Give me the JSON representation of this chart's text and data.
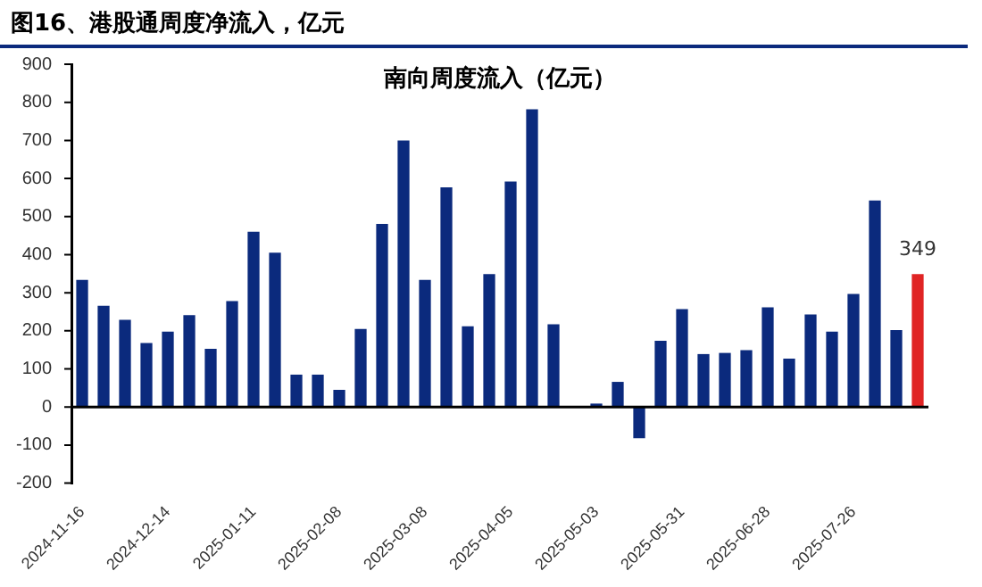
{
  "chart_data": {
    "type": "bar",
    "title": "图16、港股通周度净流入，亿元",
    "subtitle": "南向周度流入（亿元）",
    "categories": [
      "2024-11-16",
      null,
      null,
      null,
      "2024-12-14",
      null,
      null,
      null,
      "2025-01-11",
      null,
      null,
      null,
      "2025-02-08",
      null,
      null,
      null,
      "2025-03-08",
      null,
      null,
      null,
      "2025-04-05",
      null,
      null,
      null,
      "2025-05-03",
      null,
      null,
      null,
      "2025-05-31",
      null,
      null,
      null,
      "2025-06-28",
      null,
      null,
      null,
      "2025-07-26",
      null,
      null,
      null
    ],
    "values": [
      334,
      266,
      229,
      168,
      198,
      241,
      153,
      278,
      460,
      405,
      85,
      85,
      45,
      205,
      481,
      700,
      334,
      577,
      212,
      349,
      592,
      782,
      217,
      null,
      9,
      66,
      -82,
      174,
      257,
      139,
      142,
      149,
      262,
      127,
      243,
      198,
      297,
      542,
      202,
      349
    ],
    "colors": [
      "#0b2a7d",
      "#0b2a7d",
      "#0b2a7d",
      "#0b2a7d",
      "#0b2a7d",
      "#0b2a7d",
      "#0b2a7d",
      "#0b2a7d",
      "#0b2a7d",
      "#0b2a7d",
      "#0b2a7d",
      "#0b2a7d",
      "#0b2a7d",
      "#0b2a7d",
      "#0b2a7d",
      "#0b2a7d",
      "#0b2a7d",
      "#0b2a7d",
      "#0b2a7d",
      "#0b2a7d",
      "#0b2a7d",
      "#0b2a7d",
      "#0b2a7d",
      "#0b2a7d",
      "#0b2a7d",
      "#0b2a7d",
      "#0b2a7d",
      "#0b2a7d",
      "#0b2a7d",
      "#0b2a7d",
      "#0b2a7d",
      "#0b2a7d",
      "#0b2a7d",
      "#0b2a7d",
      "#0b2a7d",
      "#0b2a7d",
      "#0b2a7d",
      "#0b2a7d",
      "#0b2a7d",
      "#e02424"
    ],
    "value_labels": [
      null,
      null,
      null,
      null,
      null,
      null,
      null,
      null,
      null,
      null,
      null,
      null,
      null,
      null,
      null,
      null,
      null,
      null,
      null,
      null,
      null,
      null,
      null,
      null,
      null,
      null,
      null,
      null,
      null,
      null,
      null,
      null,
      null,
      null,
      null,
      null,
      null,
      null,
      null,
      "349"
    ],
    "ylim": [
      -200,
      900
    ],
    "yticks": [
      -200,
      -100,
      0,
      100,
      200,
      300,
      400,
      500,
      600,
      700,
      800,
      900
    ],
    "legend": false
  }
}
